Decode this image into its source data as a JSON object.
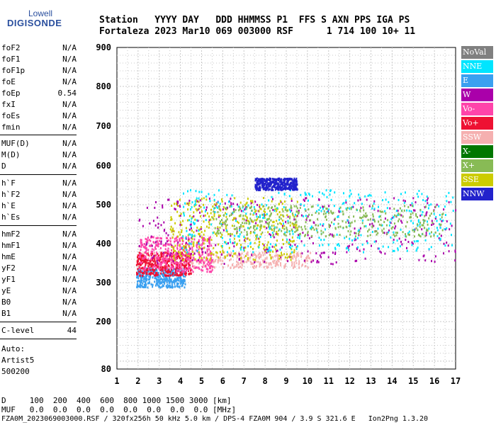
{
  "logo": {
    "line1": "Lowell",
    "line2": "DIGISONDE"
  },
  "header": {
    "labels": "Station   YYYY DAY   DDD HHMMSS P1  FFS S AXN PPS IGA PS",
    "values": "Fortaleza 2023 Mar10 069 003000 RSF      1 714 100 10+ 11"
  },
  "params": [
    {
      "name": "foF2",
      "value": "N/A"
    },
    {
      "name": "foF1",
      "value": "N/A"
    },
    {
      "name": "foF1p",
      "value": "N/A"
    },
    {
      "name": "foE",
      "value": "N/A"
    },
    {
      "name": "foEp",
      "value": "0.54"
    },
    {
      "name": "fxI",
      "value": "N/A"
    },
    {
      "name": "foEs",
      "value": "N/A"
    },
    {
      "name": "fmin",
      "value": "N/A"
    },
    {
      "name": "MUF(D)",
      "value": "N/A"
    },
    {
      "name": "M(D)",
      "value": "N/A"
    },
    {
      "name": "D",
      "value": "N/A"
    },
    {
      "name": "h`F",
      "value": "N/A"
    },
    {
      "name": "h`F2",
      "value": "N/A"
    },
    {
      "name": "h`E",
      "value": "N/A"
    },
    {
      "name": "h`Es",
      "value": "N/A"
    },
    {
      "name": "hmF2",
      "value": "N/A"
    },
    {
      "name": "hmF1",
      "value": "N/A"
    },
    {
      "name": "hmE",
      "value": "N/A"
    },
    {
      "name": "yF2",
      "value": "N/A"
    },
    {
      "name": "yF1",
      "value": "N/A"
    },
    {
      "name": "yE",
      "value": "N/A"
    },
    {
      "name": "B0",
      "value": "N/A"
    },
    {
      "name": "B1",
      "value": "N/A"
    },
    {
      "name": "C-level",
      "value": "44"
    }
  ],
  "notes": {
    "auto_label": "Auto:",
    "artist": "Artist5",
    "version": "500200"
  },
  "legend": [
    {
      "label": "NoVal",
      "color": "#808080"
    },
    {
      "label": "NNE",
      "color": "#00e5ff"
    },
    {
      "label": "E",
      "color": "#3aa0f0"
    },
    {
      "label": "W",
      "color": "#aa00aa"
    },
    {
      "label": "Vo-",
      "color": "#ff44aa"
    },
    {
      "label": "Vo+",
      "color": "#ee1133"
    },
    {
      "label": "SSW",
      "color": "#f5b0b0"
    },
    {
      "label": "X-",
      "color": "#007700"
    },
    {
      "label": "X+",
      "color": "#88bb55"
    },
    {
      "label": "SSE",
      "color": "#cccc00"
    },
    {
      "label": "NNW",
      "color": "#2222cc"
    }
  ],
  "footer": {
    "d_row": "D     100  200  400  600  800 1000 1500 3000 [km]",
    "muf_row": "MUF   0.0  0.0  0.0  0.0  0.0  0.0  0.0  0.0 [MHz]",
    "file_row": "FZA0M_2023069003000.RSF / 320fx256h 50 kHz 5.0 km / DPS-4 FZA0M 904 / 3.9 S 321.6 E   Ion2Png 1.3.20"
  },
  "chart_data": {
    "type": "scatter",
    "x_ticks": [
      "1",
      "2",
      "3",
      "4",
      "5",
      "6",
      "7",
      "8",
      "9",
      "10",
      "11",
      "12",
      "13",
      "14",
      "15",
      "16",
      "17"
    ],
    "y_ticks": [
      "80",
      "200",
      "300",
      "400",
      "500",
      "600",
      "700",
      "800",
      "900"
    ],
    "xlim": [
      1,
      17
    ],
    "ylim": [
      80,
      900
    ],
    "grid": true,
    "clusters": [
      {
        "series": "SSW",
        "x": [
          1.9,
          10.2
        ],
        "y": [
          340,
          380
        ]
      },
      {
        "series": "E",
        "x": [
          1.9,
          4.2
        ],
        "y": [
          290,
          340
        ]
      },
      {
        "series": "Vo+",
        "x": [
          1.9,
          4.5
        ],
        "y": [
          320,
          380
        ]
      },
      {
        "series": "Vo-",
        "x": [
          2.0,
          5.5
        ],
        "y": [
          330,
          420
        ]
      },
      {
        "series": "W",
        "x": [
          2.0,
          17.0
        ],
        "y": [
          350,
          520
        ]
      },
      {
        "series": "SSE",
        "x": [
          3.5,
          9.5
        ],
        "y": [
          360,
          520
        ]
      },
      {
        "series": "NNE",
        "x": [
          4.0,
          17.0
        ],
        "y": [
          380,
          540
        ]
      },
      {
        "series": "NNW",
        "x": [
          7.5,
          9.5
        ],
        "y": [
          540,
          570
        ]
      },
      {
        "series": "X+",
        "x": [
          5.5,
          16.5
        ],
        "y": [
          420,
          500
        ]
      }
    ]
  }
}
